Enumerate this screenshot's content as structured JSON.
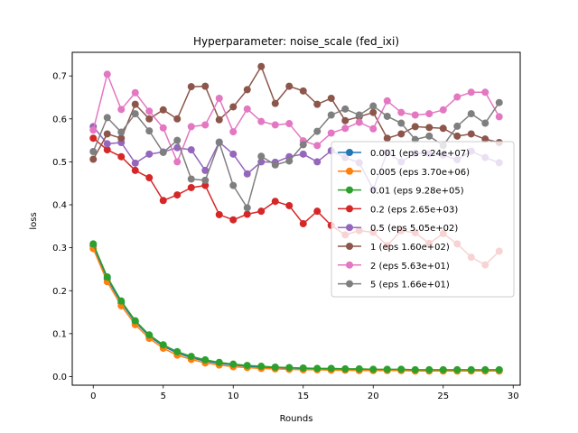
{
  "chart_data": {
    "type": "line",
    "title": "Hyperparameter: noise_scale (fed_ixi)",
    "xlabel": "Rounds",
    "ylabel": "loss",
    "xlim": [
      -1.5,
      30.5
    ],
    "ylim": [
      -0.02,
      0.755
    ],
    "x_ticks": [
      0,
      5,
      10,
      15,
      20,
      25,
      30
    ],
    "y_ticks": [
      0.0,
      0.1,
      0.2,
      0.3,
      0.4,
      0.5,
      0.6,
      0.7
    ],
    "y_tick_labels": [
      "0.0",
      "0.1",
      "0.2",
      "0.3",
      "0.4",
      "0.5",
      "0.6",
      "0.7"
    ],
    "grid": false,
    "legend_position": "center-right",
    "x": [
      0,
      1,
      2,
      3,
      4,
      5,
      6,
      7,
      8,
      9,
      10,
      11,
      12,
      13,
      14,
      15,
      16,
      17,
      18,
      19,
      20,
      21,
      22,
      23,
      24,
      25,
      26,
      27,
      28,
      29
    ],
    "series": [
      {
        "name": "0.001 (eps 9.24e+07)",
        "color": "#1f77b4",
        "values": [
          0.305,
          0.228,
          0.172,
          0.127,
          0.094,
          0.071,
          0.055,
          0.044,
          0.036,
          0.031,
          0.027,
          0.024,
          0.022,
          0.021,
          0.02,
          0.019,
          0.018,
          0.018,
          0.017,
          0.017,
          0.016,
          0.016,
          0.016,
          0.015,
          0.015,
          0.015,
          0.015,
          0.015,
          0.015,
          0.015
        ]
      },
      {
        "name": "0.005 (eps 3.70e+06)",
        "color": "#ff7f0e",
        "values": [
          0.298,
          0.221,
          0.165,
          0.121,
          0.089,
          0.066,
          0.05,
          0.04,
          0.032,
          0.027,
          0.023,
          0.021,
          0.019,
          0.018,
          0.017,
          0.016,
          0.016,
          0.015,
          0.015,
          0.014,
          0.014,
          0.014,
          0.014,
          0.013,
          0.013,
          0.013,
          0.013,
          0.013,
          0.013,
          0.013
        ]
      },
      {
        "name": "0.01 (eps 9.28e+05)",
        "color": "#2ca02c",
        "values": [
          0.309,
          0.232,
          0.176,
          0.13,
          0.097,
          0.074,
          0.058,
          0.047,
          0.039,
          0.033,
          0.029,
          0.026,
          0.024,
          0.022,
          0.021,
          0.02,
          0.019,
          0.019,
          0.018,
          0.018,
          0.017,
          0.017,
          0.017,
          0.016,
          0.016,
          0.016,
          0.016,
          0.016,
          0.016,
          0.016
        ]
      },
      {
        "name": "0.2 (eps 2.65e+03)",
        "color": "#d62728",
        "values": [
          0.555,
          0.528,
          0.512,
          0.48,
          0.463,
          0.41,
          0.423,
          0.44,
          0.445,
          0.377,
          0.365,
          0.378,
          0.385,
          0.408,
          0.398,
          0.356,
          0.385,
          0.352,
          0.33,
          0.34,
          0.336,
          0.305,
          0.34,
          0.335,
          0.31,
          0.333,
          0.309,
          0.278,
          0.26,
          0.292
        ]
      },
      {
        "name": "0.5 (eps 5.05e+02)",
        "color": "#9467bd",
        "values": [
          0.582,
          0.542,
          0.545,
          0.497,
          0.518,
          0.523,
          0.533,
          0.528,
          0.48,
          0.546,
          0.518,
          0.472,
          0.5,
          0.499,
          0.512,
          0.518,
          0.5,
          0.526,
          0.51,
          0.498,
          0.436,
          0.522,
          0.5,
          0.52,
          0.519,
          0.516,
          0.505,
          0.525,
          0.51,
          0.498
        ]
      },
      {
        "name": "1 (eps 1.60e+02)",
        "color": "#8c564b",
        "values": [
          0.506,
          0.565,
          0.555,
          0.634,
          0.6,
          0.621,
          0.6,
          0.675,
          0.676,
          0.598,
          0.628,
          0.668,
          0.722,
          0.636,
          0.676,
          0.665,
          0.634,
          0.648,
          0.596,
          0.605,
          0.615,
          0.555,
          0.565,
          0.582,
          0.58,
          0.578,
          0.56,
          0.565,
          0.553,
          0.545
        ]
      },
      {
        "name": "2 (eps 5.63e+01)",
        "color": "#e377c2",
        "values": [
          0.574,
          0.704,
          0.622,
          0.661,
          0.618,
          0.579,
          0.5,
          0.582,
          0.586,
          0.648,
          0.57,
          0.623,
          0.594,
          0.586,
          0.589,
          0.549,
          0.538,
          0.567,
          0.578,
          0.592,
          0.577,
          0.642,
          0.615,
          0.609,
          0.612,
          0.621,
          0.651,
          0.662,
          0.662,
          0.605
        ]
      },
      {
        "name": "5 (eps 1.66e+01)",
        "color": "#7f7f7f",
        "values": [
          0.524,
          0.603,
          0.569,
          0.612,
          0.572,
          0.522,
          0.55,
          0.46,
          0.457,
          0.545,
          0.445,
          0.393,
          0.513,
          0.493,
          0.502,
          0.54,
          0.571,
          0.609,
          0.623,
          0.609,
          0.63,
          0.606,
          0.59,
          0.552,
          0.56,
          0.538,
          0.583,
          0.612,
          0.59,
          0.638
        ]
      }
    ]
  }
}
